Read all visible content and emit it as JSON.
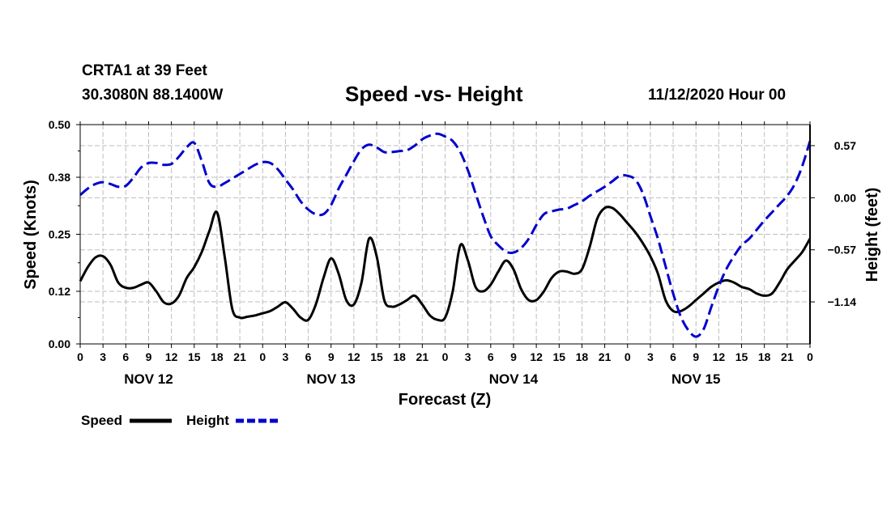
{
  "header": {
    "station": "CRTA1 at 39 Feet",
    "coords": "30.3080N 88.1400W",
    "title": "Speed -vs- Height",
    "datetime": "11/12/2020 Hour 00"
  },
  "chart_data": {
    "type": "line",
    "title": "Speed -vs- Height",
    "xlabel": "Forecast (Z)",
    "ylabel": "Speed (Knots)",
    "y2label": "Height (feet)",
    "x_range_hours": [
      0,
      96
    ],
    "x_tick_labels": [
      "0",
      "3",
      "6",
      "9",
      "12",
      "15",
      "18",
      "21",
      "0",
      "3",
      "6",
      "9",
      "12",
      "15",
      "18",
      "21",
      "0",
      "3",
      "6",
      "9",
      "12",
      "15",
      "18",
      "21",
      "0",
      "3",
      "6",
      "9",
      "12",
      "15",
      "18",
      "21",
      "0"
    ],
    "day_labels": [
      {
        "label": "NOV 12",
        "hour": 9
      },
      {
        "label": "NOV 13",
        "hour": 33
      },
      {
        "label": "NOV 14",
        "hour": 57
      },
      {
        "label": "NOV 15",
        "hour": 81
      }
    ],
    "y_left": {
      "min": 0,
      "max": 0.5,
      "ticks": [
        0.0,
        0.12,
        0.25,
        0.38,
        0.5
      ],
      "tick_labels": [
        "0.00",
        "0.12",
        "0.25",
        "0.38",
        "0.50"
      ]
    },
    "y_right": {
      "min": -1.6,
      "max": 0.8,
      "ticks": [
        -1.14,
        -0.57,
        0.0,
        0.57
      ],
      "tick_labels": [
        "−1.14",
        "−0.57",
        "0.00",
        "0.57"
      ]
    },
    "grid": true,
    "legend_position": "bottom-left",
    "series": [
      {
        "name": "Speed",
        "axis": "left",
        "color": "#000000",
        "style": "solid",
        "points": [
          [
            0,
            0.143
          ],
          [
            1,
            0.175
          ],
          [
            2,
            0.197
          ],
          [
            3,
            0.2
          ],
          [
            4,
            0.18
          ],
          [
            5,
            0.14
          ],
          [
            6,
            0.128
          ],
          [
            7,
            0.128
          ],
          [
            8,
            0.135
          ],
          [
            9,
            0.14
          ],
          [
            10,
            0.12
          ],
          [
            11,
            0.095
          ],
          [
            12,
            0.092
          ],
          [
            13,
            0.11
          ],
          [
            14,
            0.15
          ],
          [
            15,
            0.175
          ],
          [
            16,
            0.21
          ],
          [
            17,
            0.258
          ],
          [
            18,
            0.3
          ],
          [
            19,
            0.2
          ],
          [
            20,
            0.08
          ],
          [
            21,
            0.06
          ],
          [
            22,
            0.062
          ],
          [
            23,
            0.065
          ],
          [
            24,
            0.07
          ],
          [
            25,
            0.075
          ],
          [
            26,
            0.085
          ],
          [
            27,
            0.095
          ],
          [
            28,
            0.08
          ],
          [
            29,
            0.06
          ],
          [
            30,
            0.055
          ],
          [
            31,
            0.09
          ],
          [
            32,
            0.15
          ],
          [
            33,
            0.195
          ],
          [
            34,
            0.16
          ],
          [
            35,
            0.1
          ],
          [
            36,
            0.09
          ],
          [
            37,
            0.14
          ],
          [
            38,
            0.24
          ],
          [
            39,
            0.2
          ],
          [
            40,
            0.1
          ],
          [
            41,
            0.085
          ],
          [
            42,
            0.09
          ],
          [
            43,
            0.1
          ],
          [
            44,
            0.11
          ],
          [
            45,
            0.09
          ],
          [
            46,
            0.065
          ],
          [
            47,
            0.055
          ],
          [
            48,
            0.06
          ],
          [
            49,
            0.12
          ],
          [
            50,
            0.225
          ],
          [
            51,
            0.19
          ],
          [
            52,
            0.13
          ],
          [
            53,
            0.12
          ],
          [
            54,
            0.135
          ],
          [
            55,
            0.165
          ],
          [
            56,
            0.19
          ],
          [
            57,
            0.17
          ],
          [
            58,
            0.125
          ],
          [
            59,
            0.1
          ],
          [
            60,
            0.1
          ],
          [
            61,
            0.12
          ],
          [
            62,
            0.15
          ],
          [
            63,
            0.165
          ],
          [
            64,
            0.165
          ],
          [
            65,
            0.16
          ],
          [
            66,
            0.17
          ],
          [
            67,
            0.22
          ],
          [
            68,
            0.285
          ],
          [
            69,
            0.31
          ],
          [
            70,
            0.31
          ],
          [
            71,
            0.295
          ],
          [
            72,
            0.275
          ],
          [
            73,
            0.255
          ],
          [
            74,
            0.23
          ],
          [
            75,
            0.2
          ],
          [
            76,
            0.16
          ],
          [
            77,
            0.1
          ],
          [
            78,
            0.075
          ],
          [
            79,
            0.075
          ],
          [
            80,
            0.085
          ],
          [
            81,
            0.1
          ],
          [
            82,
            0.115
          ],
          [
            83,
            0.13
          ],
          [
            84,
            0.14
          ],
          [
            85,
            0.145
          ],
          [
            86,
            0.14
          ],
          [
            87,
            0.13
          ],
          [
            88,
            0.125
          ],
          [
            89,
            0.115
          ],
          [
            90,
            0.11
          ],
          [
            91,
            0.115
          ],
          [
            92,
            0.14
          ],
          [
            93,
            0.17
          ],
          [
            94,
            0.19
          ],
          [
            95,
            0.21
          ],
          [
            96,
            0.24
          ]
        ]
      },
      {
        "name": "Height",
        "axis": "right",
        "color": "#0000cc",
        "style": "dashed",
        "points": [
          [
            0,
            0.03
          ],
          [
            1,
            0.1
          ],
          [
            2,
            0.15
          ],
          [
            3,
            0.17
          ],
          [
            4,
            0.15
          ],
          [
            5,
            0.12
          ],
          [
            6,
            0.13
          ],
          [
            7,
            0.22
          ],
          [
            8,
            0.33
          ],
          [
            9,
            0.38
          ],
          [
            10,
            0.38
          ],
          [
            11,
            0.36
          ],
          [
            12,
            0.37
          ],
          [
            13,
            0.45
          ],
          [
            14,
            0.55
          ],
          [
            15,
            0.6
          ],
          [
            16,
            0.4
          ],
          [
            17,
            0.16
          ],
          [
            18,
            0.12
          ],
          [
            19,
            0.16
          ],
          [
            20,
            0.21
          ],
          [
            21,
            0.26
          ],
          [
            22,
            0.31
          ],
          [
            23,
            0.36
          ],
          [
            24,
            0.39
          ],
          [
            25,
            0.38
          ],
          [
            26,
            0.31
          ],
          [
            27,
            0.2
          ],
          [
            28,
            0.09
          ],
          [
            29,
            -0.04
          ],
          [
            30,
            -0.13
          ],
          [
            31,
            -0.18
          ],
          [
            32,
            -0.18
          ],
          [
            33,
            -0.08
          ],
          [
            34,
            0.1
          ],
          [
            35,
            0.25
          ],
          [
            36,
            0.4
          ],
          [
            37,
            0.53
          ],
          [
            38,
            0.58
          ],
          [
            39,
            0.55
          ],
          [
            40,
            0.5
          ],
          [
            41,
            0.5
          ],
          [
            42,
            0.51
          ],
          [
            43,
            0.52
          ],
          [
            44,
            0.57
          ],
          [
            45,
            0.64
          ],
          [
            46,
            0.68
          ],
          [
            47,
            0.7
          ],
          [
            48,
            0.67
          ],
          [
            49,
            0.62
          ],
          [
            50,
            0.5
          ],
          [
            51,
            0.3
          ],
          [
            52,
            0.05
          ],
          [
            53,
            -0.2
          ],
          [
            54,
            -0.42
          ],
          [
            55,
            -0.52
          ],
          [
            56,
            -0.59
          ],
          [
            57,
            -0.6
          ],
          [
            58,
            -0.55
          ],
          [
            59,
            -0.45
          ],
          [
            60,
            -0.3
          ],
          [
            61,
            -0.18
          ],
          [
            62,
            -0.15
          ],
          [
            63,
            -0.13
          ],
          [
            64,
            -0.12
          ],
          [
            65,
            -0.08
          ],
          [
            66,
            -0.04
          ],
          [
            67,
            0.02
          ],
          [
            68,
            0.07
          ],
          [
            69,
            0.12
          ],
          [
            70,
            0.18
          ],
          [
            71,
            0.24
          ],
          [
            72,
            0.24
          ],
          [
            73,
            0.2
          ],
          [
            74,
            0.05
          ],
          [
            75,
            -0.2
          ],
          [
            76,
            -0.45
          ],
          [
            77,
            -0.75
          ],
          [
            78,
            -1.05
          ],
          [
            79,
            -1.3
          ],
          [
            80,
            -1.45
          ],
          [
            81,
            -1.52
          ],
          [
            82,
            -1.44
          ],
          [
            83,
            -1.2
          ],
          [
            84,
            -0.97
          ],
          [
            85,
            -0.78
          ],
          [
            86,
            -0.64
          ],
          [
            87,
            -0.52
          ],
          [
            88,
            -0.45
          ],
          [
            89,
            -0.35
          ],
          [
            90,
            -0.25
          ],
          [
            91,
            -0.16
          ],
          [
            92,
            -0.07
          ],
          [
            93,
            0.02
          ],
          [
            94,
            0.15
          ],
          [
            95,
            0.35
          ],
          [
            96,
            0.62
          ]
        ]
      }
    ]
  }
}
